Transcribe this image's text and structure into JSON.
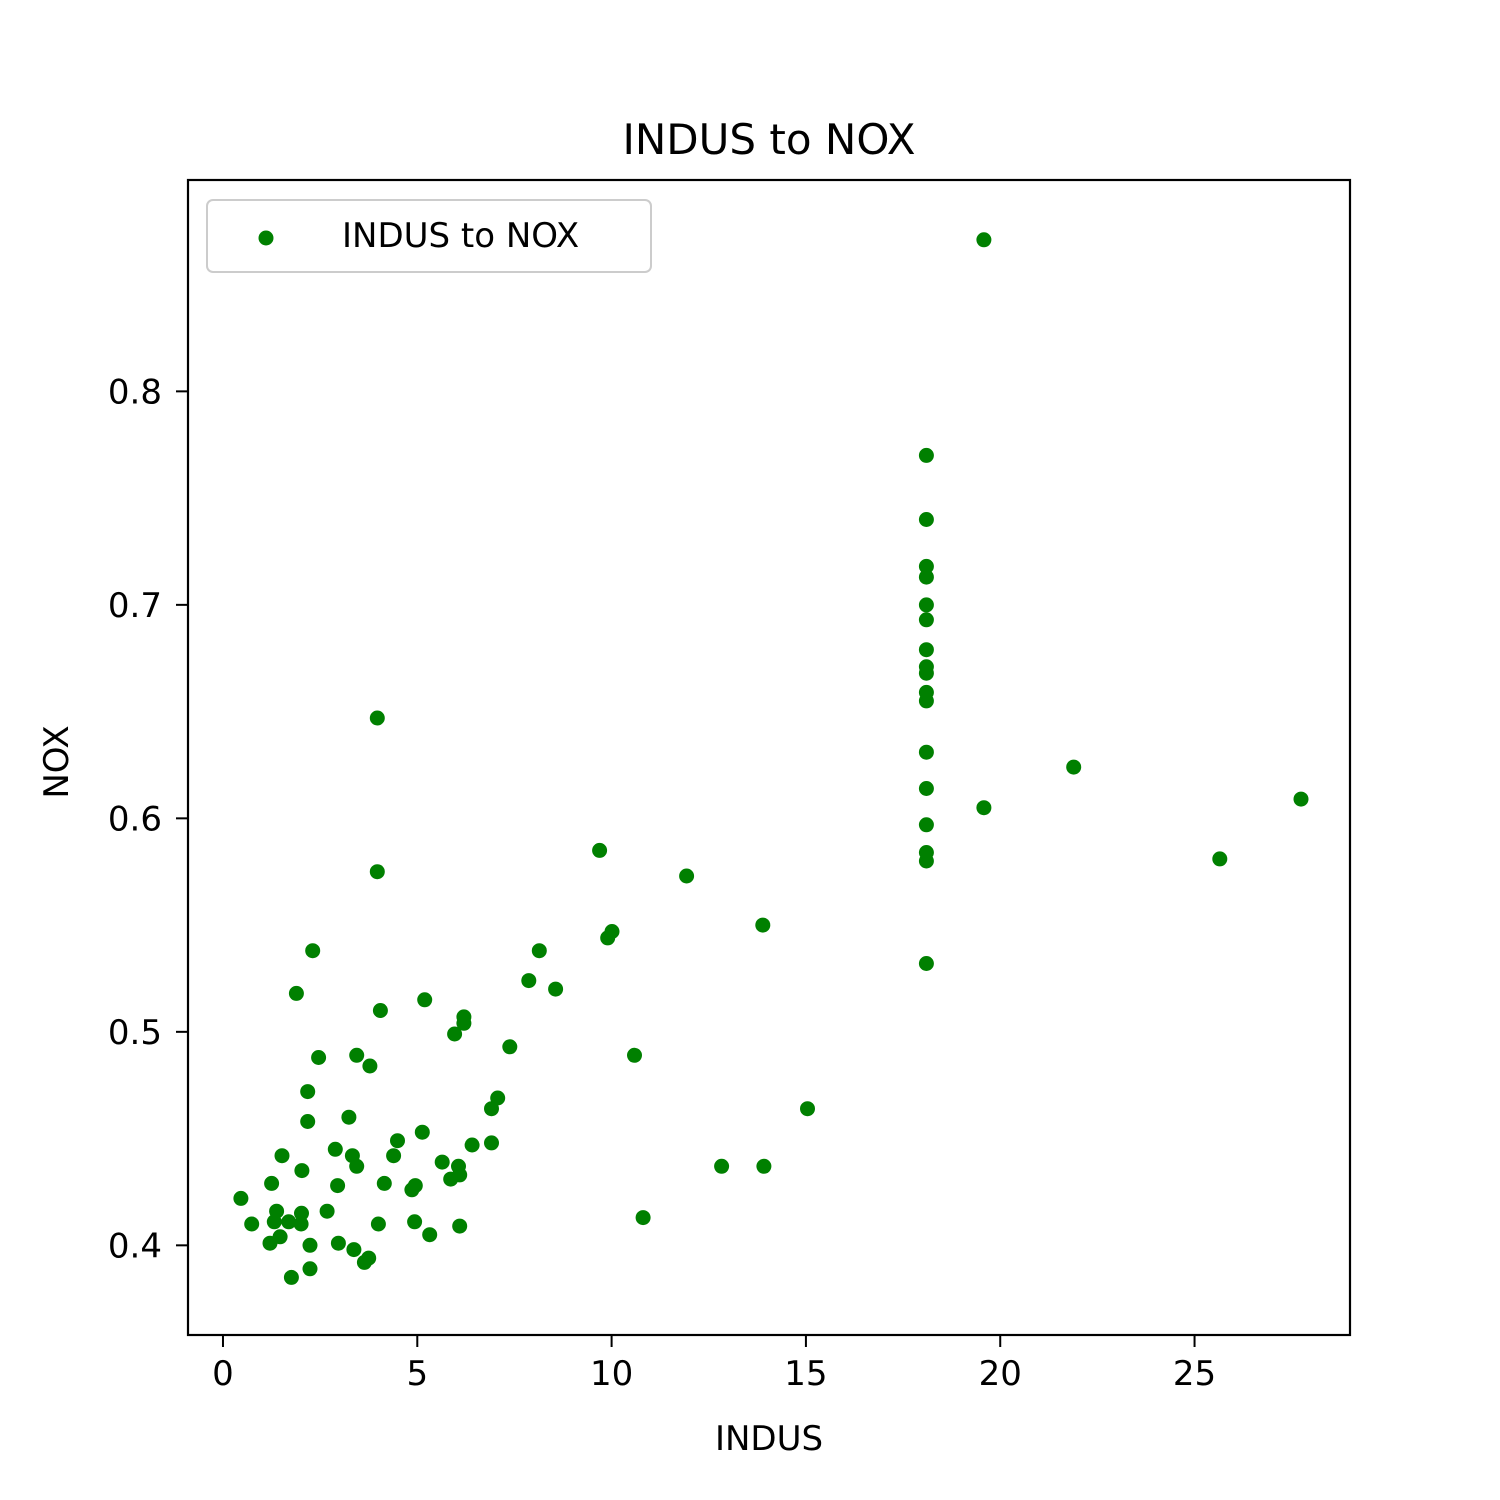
{
  "chart_data": {
    "type": "scatter",
    "title": "INDUS to NOX",
    "xlabel": "INDUS",
    "ylabel": "NOX",
    "xlim": [
      -0.9,
      29.0
    ],
    "ylim": [
      0.358,
      0.899
    ],
    "xticks": [
      0,
      5,
      10,
      15,
      20,
      25
    ],
    "yticks": [
      0.4,
      0.5,
      0.6,
      0.7,
      0.8
    ],
    "grid": false,
    "legend": {
      "placement": "top-left",
      "entries": [
        "INDUS to NOX"
      ]
    },
    "series": [
      {
        "name": "INDUS to NOX",
        "color": "#008000",
        "points": [
          [
            19.58,
            0.871
          ],
          [
            18.1,
            0.77
          ],
          [
            18.1,
            0.74
          ],
          [
            18.1,
            0.718
          ],
          [
            18.1,
            0.713
          ],
          [
            18.1,
            0.7
          ],
          [
            18.1,
            0.693
          ],
          [
            18.1,
            0.679
          ],
          [
            18.1,
            0.671
          ],
          [
            18.1,
            0.668
          ],
          [
            18.1,
            0.659
          ],
          [
            18.1,
            0.655
          ],
          [
            18.1,
            0.631
          ],
          [
            18.1,
            0.614
          ],
          [
            18.1,
            0.597
          ],
          [
            18.1,
            0.584
          ],
          [
            18.1,
            0.58
          ],
          [
            18.1,
            0.532
          ],
          [
            19.58,
            0.605
          ],
          [
            21.89,
            0.624
          ],
          [
            27.74,
            0.609
          ],
          [
            25.65,
            0.581
          ],
          [
            3.97,
            0.647
          ],
          [
            3.97,
            0.575
          ],
          [
            9.69,
            0.585
          ],
          [
            11.93,
            0.573
          ],
          [
            13.89,
            0.55
          ],
          [
            9.9,
            0.544
          ],
          [
            10.01,
            0.547
          ],
          [
            8.14,
            0.538
          ],
          [
            7.87,
            0.524
          ],
          [
            8.56,
            0.52
          ],
          [
            2.31,
            0.538
          ],
          [
            1.89,
            0.518
          ],
          [
            4.05,
            0.51
          ],
          [
            5.19,
            0.515
          ],
          [
            6.2,
            0.507
          ],
          [
            6.2,
            0.504
          ],
          [
            5.96,
            0.499
          ],
          [
            7.38,
            0.493
          ],
          [
            10.59,
            0.489
          ],
          [
            2.46,
            0.488
          ],
          [
            3.44,
            0.489
          ],
          [
            3.78,
            0.484
          ],
          [
            2.18,
            0.472
          ],
          [
            7.07,
            0.469
          ],
          [
            6.91,
            0.464
          ],
          [
            15.04,
            0.464
          ],
          [
            3.24,
            0.46
          ],
          [
            2.18,
            0.458
          ],
          [
            5.13,
            0.453
          ],
          [
            4.49,
            0.449
          ],
          [
            6.41,
            0.447
          ],
          [
            6.91,
            0.448
          ],
          [
            2.89,
            0.445
          ],
          [
            1.52,
            0.442
          ],
          [
            3.33,
            0.442
          ],
          [
            4.39,
            0.442
          ],
          [
            5.64,
            0.439
          ],
          [
            6.06,
            0.437
          ],
          [
            3.44,
            0.437
          ],
          [
            12.83,
            0.437
          ],
          [
            13.92,
            0.437
          ],
          [
            2.03,
            0.435
          ],
          [
            6.09,
            0.433
          ],
          [
            5.86,
            0.431
          ],
          [
            1.25,
            0.429
          ],
          [
            4.15,
            0.429
          ],
          [
            2.95,
            0.428
          ],
          [
            4.95,
            0.428
          ],
          [
            4.86,
            0.426
          ],
          [
            0.46,
            0.422
          ],
          [
            2.68,
            0.416
          ],
          [
            1.38,
            0.416
          ],
          [
            2.02,
            0.415
          ],
          [
            10.81,
            0.413
          ],
          [
            1.69,
            0.411
          ],
          [
            4.93,
            0.411
          ],
          [
            1.32,
            0.411
          ],
          [
            0.74,
            0.41
          ],
          [
            2.01,
            0.41
          ],
          [
            4.0,
            0.41
          ],
          [
            6.09,
            0.409
          ],
          [
            5.32,
            0.405
          ],
          [
            1.47,
            0.404
          ],
          [
            1.21,
            0.401
          ],
          [
            2.24,
            0.4
          ],
          [
            2.97,
            0.401
          ],
          [
            3.37,
            0.398
          ],
          [
            3.75,
            0.394
          ],
          [
            3.64,
            0.392
          ],
          [
            2.24,
            0.389
          ],
          [
            1.76,
            0.385
          ]
        ]
      }
    ]
  }
}
